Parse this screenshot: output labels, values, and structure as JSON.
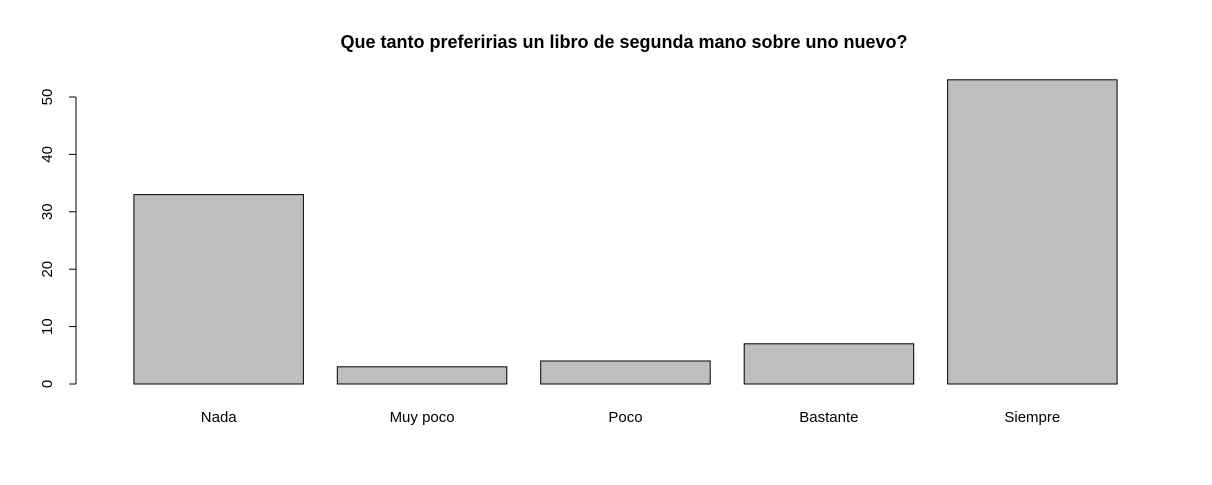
{
  "chart_data": {
    "type": "bar",
    "title": "Que tanto preferirias un libro de segunda mano sobre uno nuevo?",
    "xlabel": "",
    "ylabel": "",
    "categories": [
      "Nada",
      "Muy poco",
      "Poco",
      "Bastante",
      "Siempre"
    ],
    "values": [
      33,
      3,
      4,
      7,
      53
    ],
    "ylim": [
      0,
      55
    ],
    "yticks": [
      0,
      10,
      20,
      30,
      40,
      50
    ],
    "grid": false,
    "legend": "none",
    "bar_color": "#bebebe",
    "border_color": "#000000"
  }
}
